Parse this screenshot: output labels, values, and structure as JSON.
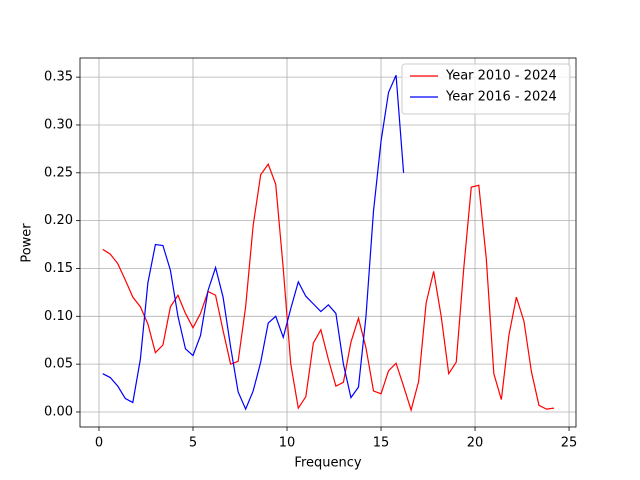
{
  "chart_data": {
    "type": "line",
    "xlabel": "Frequency",
    "ylabel": "Power",
    "xlim": [
      -1.01,
      25.37
    ],
    "ylim": [
      -0.0157,
      0.37
    ],
    "xticks": [
      0,
      5,
      10,
      15,
      20,
      25
    ],
    "yticks": [
      {
        "value": 0,
        "label": "0.00"
      },
      0.05,
      {
        "value": 0.1,
        "label": "0.10"
      },
      0.15,
      {
        "value": 0.2,
        "label": "0.20"
      },
      0.25,
      {
        "value": 0.3,
        "label": "0.30"
      },
      0.35
    ],
    "grid": true,
    "legend": "upper right",
    "series": [
      {
        "name": "Year 2010 - 2024",
        "color": "#ff0000",
        "x": [
          0.2,
          0.6,
          1.0,
          1.4,
          1.8,
          2.2,
          2.6,
          3.0,
          3.4,
          3.8,
          4.2,
          4.6,
          5.0,
          5.4,
          5.8,
          6.2,
          6.6,
          7.0,
          7.4,
          7.8,
          8.2,
          8.6,
          9.0,
          9.4,
          9.8,
          10.2,
          10.6,
          11.0,
          11.4,
          11.8,
          12.2,
          12.6,
          13.0,
          13.4,
          13.8,
          14.2,
          14.6,
          15.0,
          15.4,
          15.8,
          16.2,
          16.6,
          17.0,
          17.4,
          17.8,
          18.2,
          18.6,
          19.0,
          19.4,
          19.8,
          20.2,
          20.6,
          21.0,
          21.4,
          21.8,
          22.2,
          22.6,
          23.0,
          23.4,
          23.8,
          24.2
        ],
        "values": [
          0.17,
          0.165,
          0.155,
          0.138,
          0.12,
          0.11,
          0.092,
          0.062,
          0.07,
          0.11,
          0.122,
          0.103,
          0.088,
          0.103,
          0.126,
          0.122,
          0.085,
          0.05,
          0.053,
          0.11,
          0.195,
          0.248,
          0.259,
          0.238,
          0.15,
          0.05,
          0.004,
          0.016,
          0.072,
          0.086,
          0.055,
          0.027,
          0.031,
          0.073,
          0.098,
          0.067,
          0.022,
          0.019,
          0.043,
          0.051,
          0.027,
          0.002,
          0.032,
          0.114,
          0.147,
          0.1,
          0.04,
          0.052,
          0.15,
          0.235,
          0.237,
          0.16,
          0.04,
          0.013,
          0.08,
          0.12,
          0.095,
          0.042,
          0.007,
          0.003,
          0.004
        ]
      },
      {
        "name": "Year 2016 - 2024",
        "color": "#0000ff",
        "x": [
          0.2,
          0.6,
          1.0,
          1.4,
          1.8,
          2.2,
          2.6,
          3.0,
          3.4,
          3.8,
          4.2,
          4.6,
          5.0,
          5.4,
          5.8,
          6.2,
          6.6,
          7.0,
          7.4,
          7.8,
          8.2,
          8.6,
          9.0,
          9.4,
          9.8,
          10.2,
          10.6,
          11.0,
          11.4,
          11.8,
          12.2,
          12.6,
          13.0,
          13.4,
          13.8,
          14.2,
          14.6,
          15.0,
          15.4,
          15.8,
          16.2
        ],
        "values": [
          0.04,
          0.036,
          0.027,
          0.014,
          0.01,
          0.055,
          0.135,
          0.175,
          0.174,
          0.148,
          0.1,
          0.066,
          0.059,
          0.08,
          0.127,
          0.151,
          0.12,
          0.068,
          0.021,
          0.003,
          0.022,
          0.052,
          0.093,
          0.1,
          0.078,
          0.108,
          0.136,
          0.121,
          0.113,
          0.105,
          0.112,
          0.103,
          0.05,
          0.015,
          0.026,
          0.1,
          0.21,
          0.283,
          0.334,
          0.352,
          0.25
        ]
      }
    ]
  }
}
